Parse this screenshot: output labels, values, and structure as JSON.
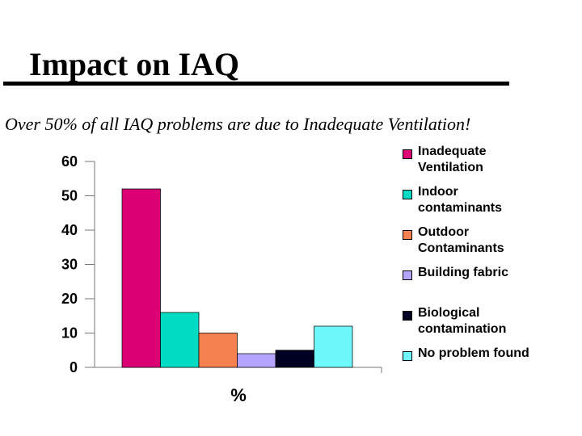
{
  "slide": {
    "title": "Impact on IAQ",
    "subtitle": "Over 50% of all IAQ problems are due to Inadequate Ventilation!"
  },
  "chart_data": {
    "type": "bar",
    "categories": [
      "Inadequate Ventilation",
      "Indoor contaminants",
      "Outdoor Contaminants",
      "Building fabric",
      "Biological contamination",
      "No problem found"
    ],
    "legend_labels": [
      "Inadequate\nVentilation",
      "Indoor\ncontaminants",
      "Outdoor\nContaminants",
      "Building fabric",
      "Biological\ncontamination",
      "No problem found"
    ],
    "values": [
      52,
      16,
      10,
      4,
      5,
      12
    ],
    "colors": [
      "#db0073",
      "#00dcc3",
      "#f58050",
      "#b5a5ff",
      "#000022",
      "#6ff8fb"
    ],
    "xlabel": "%",
    "ylabel": "",
    "ylim": [
      0,
      60
    ],
    "yticks": [
      0,
      10,
      20,
      30,
      40,
      50,
      60
    ],
    "grid": false,
    "legend_position": "right"
  }
}
